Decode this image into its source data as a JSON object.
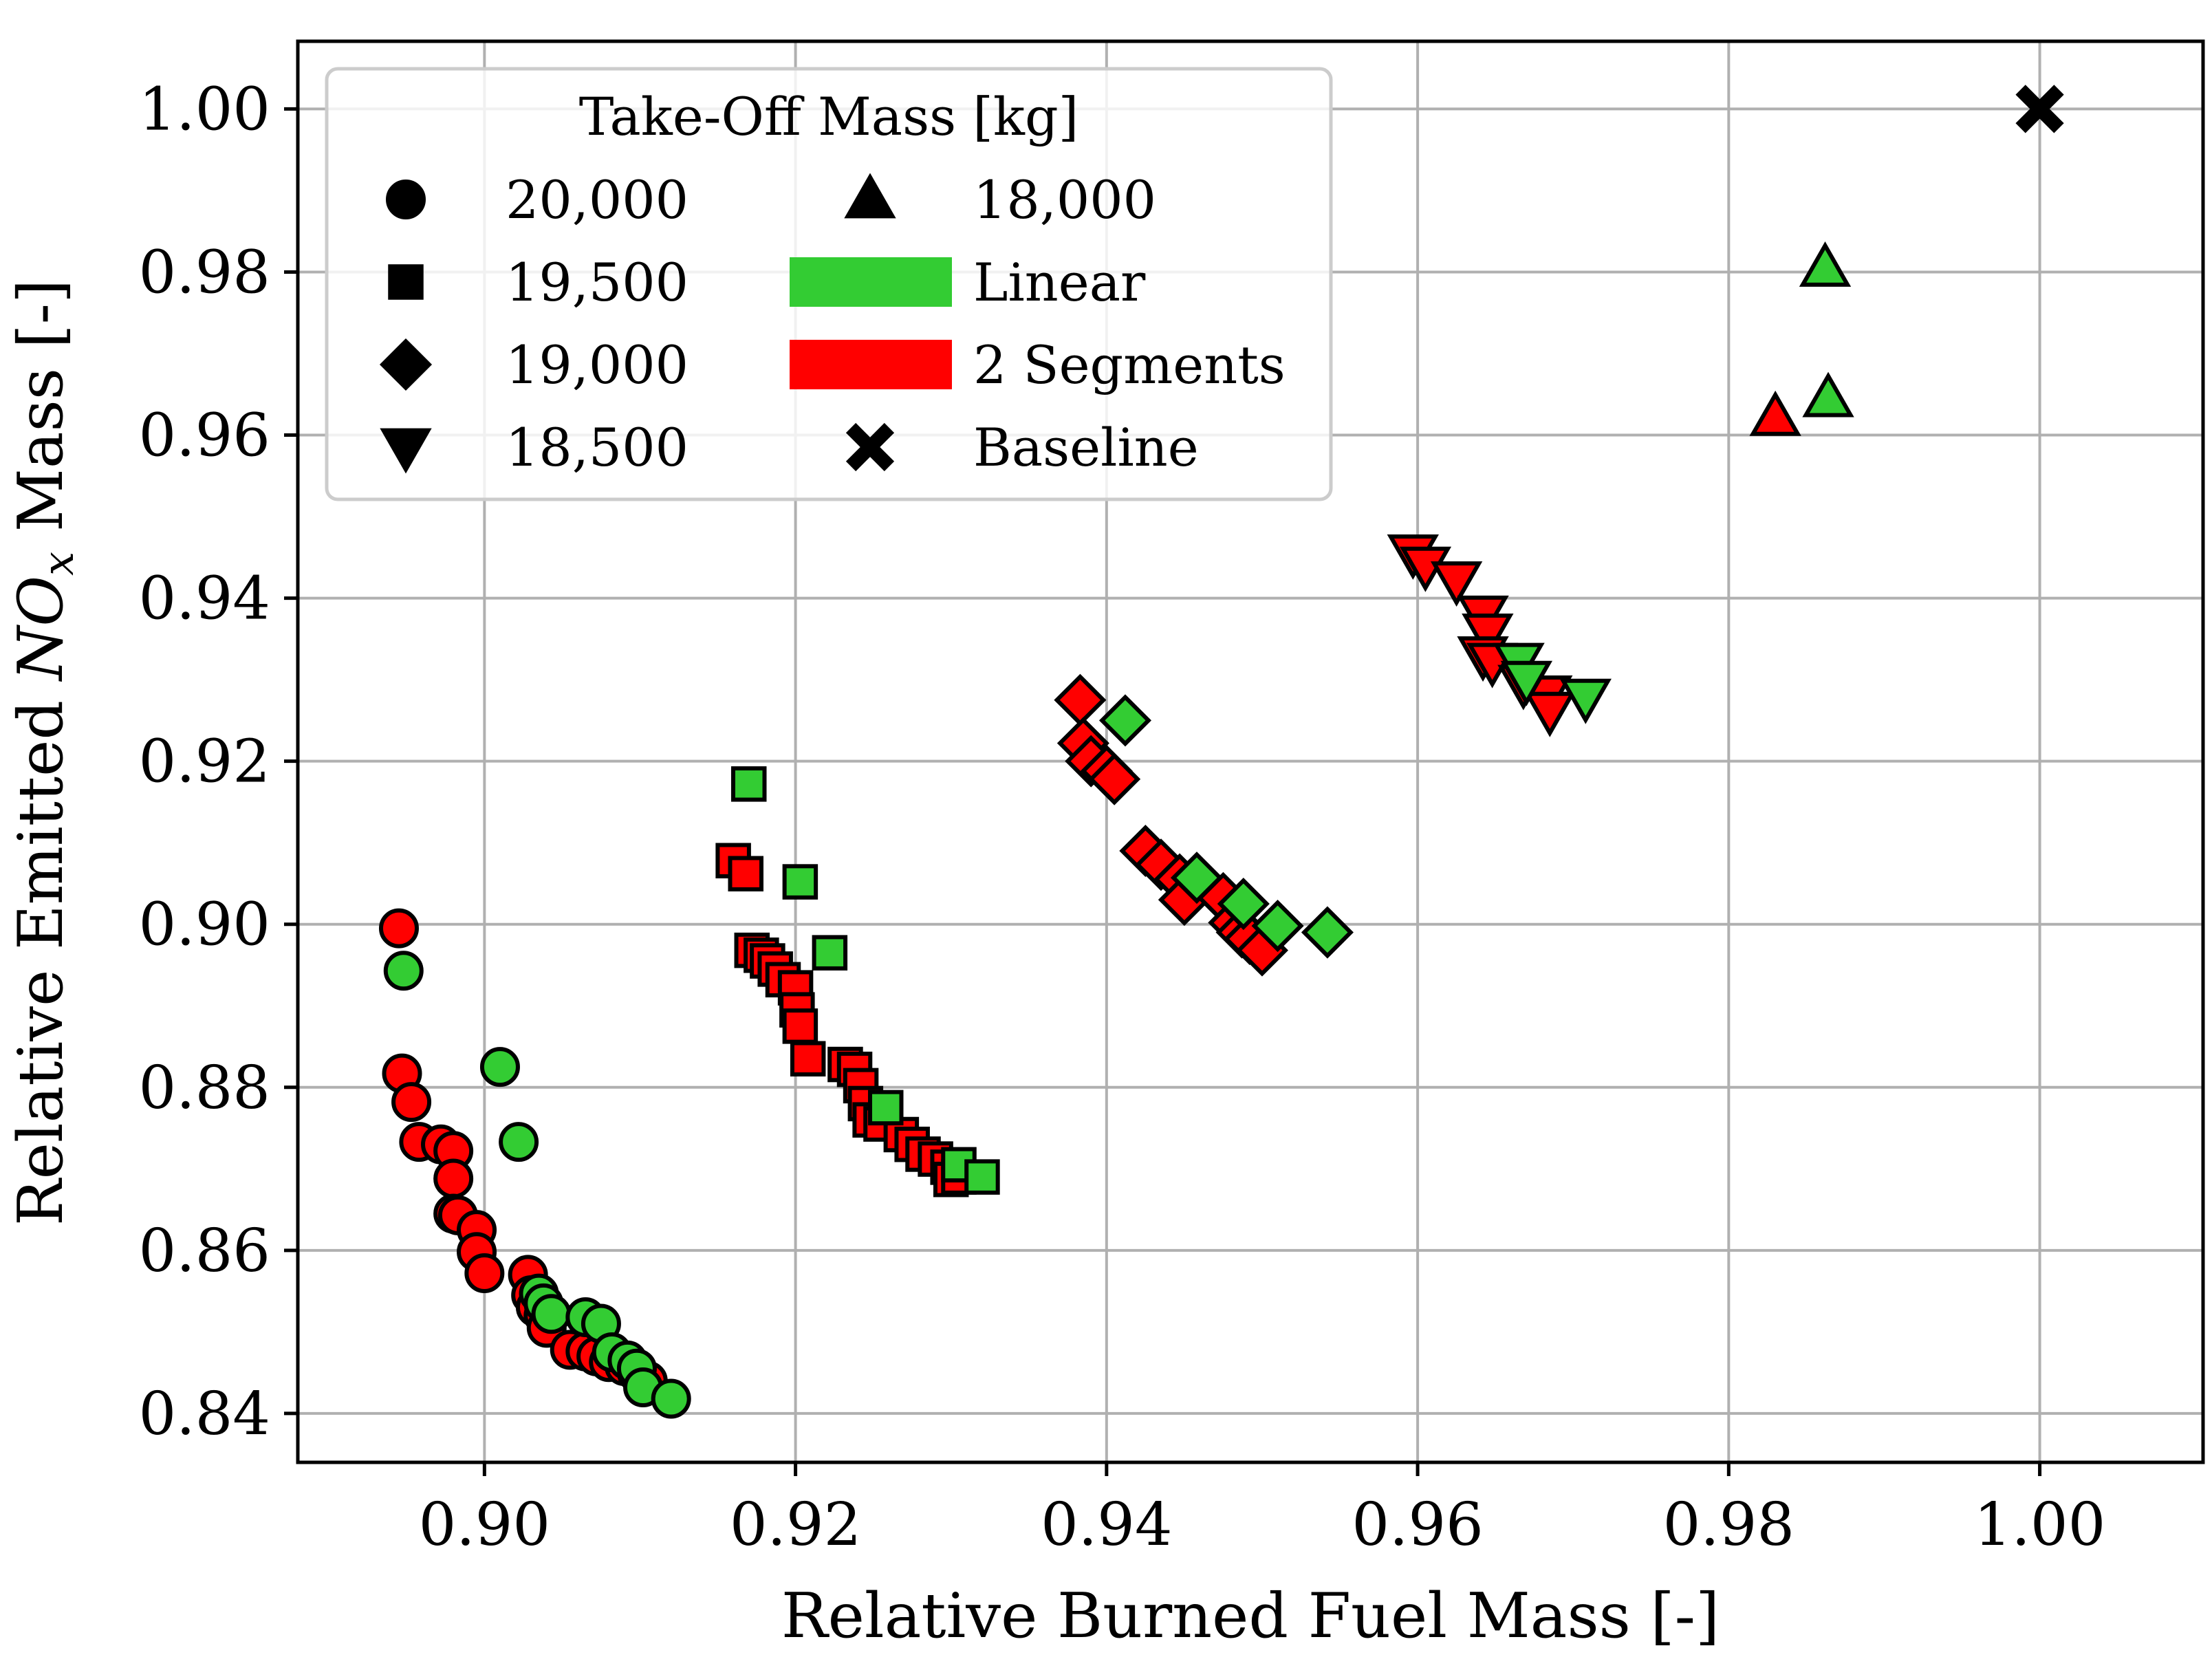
{
  "chart_data": {
    "type": "scatter",
    "xlabel": "Relative Burned Fuel Mass [-]",
    "ylabel_parts": {
      "pre": "Relative Emitted ",
      "math_main": "NO",
      "math_sub": "x",
      "post": " Mass [-]"
    },
    "xlim": [
      0.888,
      1.0105
    ],
    "ylim": [
      0.834,
      1.0083
    ],
    "grid": true,
    "x_ticks": [
      0.9,
      0.92,
      0.94,
      0.96,
      0.98,
      1.0
    ],
    "y_ticks": [
      0.84,
      0.86,
      0.88,
      0.9,
      0.92,
      0.94,
      0.96,
      0.98,
      1.0
    ],
    "x_tick_labels": [
      "0.90",
      "0.92",
      "0.94",
      "0.96",
      "0.98",
      "1.00"
    ],
    "y_tick_labels": [
      "0.84",
      "0.86",
      "0.88",
      "0.90",
      "0.92",
      "0.94",
      "0.96",
      "0.98",
      "1.00"
    ],
    "colors": {
      "linear": "#33cc33",
      "two_segments": "#ff0000",
      "baseline": "#000000",
      "grid": "#b0b0b0",
      "edge": "#000000"
    },
    "legend": {
      "title": "Take-Off Mass [kg]",
      "placement": "top-left",
      "entries": [
        {
          "label": "20,000",
          "kind": "marker",
          "shape": "circle"
        },
        {
          "label": "19,500",
          "kind": "marker",
          "shape": "square"
        },
        {
          "label": "19,000",
          "kind": "marker",
          "shape": "diamond"
        },
        {
          "label": "18,500",
          "kind": "marker",
          "shape": "triangle-down"
        },
        {
          "label": "18,000",
          "kind": "marker",
          "shape": "triangle-up"
        },
        {
          "label": "Linear",
          "kind": "patch",
          "color": "linear"
        },
        {
          "label": "2 Segments",
          "kind": "patch",
          "color": "two_segments"
        },
        {
          "label": "Baseline",
          "kind": "marker",
          "shape": "x-cross"
        }
      ]
    },
    "series": [
      {
        "name": "20,000 kg - 2 Segments",
        "shape": "circle",
        "color": "two_segments",
        "points": [
          [
            0.8945,
            0.8995
          ],
          [
            0.8947,
            0.8817
          ],
          [
            0.8953,
            0.8782
          ],
          [
            0.8958,
            0.8733
          ],
          [
            0.8972,
            0.873
          ],
          [
            0.898,
            0.8722
          ],
          [
            0.898,
            0.8688
          ],
          [
            0.898,
            0.8645
          ],
          [
            0.8983,
            0.8643
          ],
          [
            0.8995,
            0.8625
          ],
          [
            0.8995,
            0.8598
          ],
          [
            0.9,
            0.8572
          ],
          [
            0.9028,
            0.857
          ],
          [
            0.903,
            0.8545
          ],
          [
            0.9033,
            0.853
          ],
          [
            0.9038,
            0.852
          ],
          [
            0.904,
            0.8505
          ],
          [
            0.9055,
            0.8478
          ],
          [
            0.9065,
            0.8476
          ],
          [
            0.9072,
            0.847
          ],
          [
            0.908,
            0.8463
          ],
          [
            0.909,
            0.8458
          ],
          [
            0.9098,
            0.845
          ],
          [
            0.9105,
            0.844
          ]
        ]
      },
      {
        "name": "20,000 kg - Linear",
        "shape": "circle",
        "color": "linear",
        "points": [
          [
            0.8948,
            0.8943
          ],
          [
            0.901,
            0.8825
          ],
          [
            0.9022,
            0.8733
          ],
          [
            0.9035,
            0.8547
          ],
          [
            0.9038,
            0.8535
          ],
          [
            0.9043,
            0.8522
          ],
          [
            0.9065,
            0.8518
          ],
          [
            0.9075,
            0.851
          ],
          [
            0.9082,
            0.8475
          ],
          [
            0.9092,
            0.8465
          ],
          [
            0.9098,
            0.8455
          ],
          [
            0.9102,
            0.8432
          ],
          [
            0.912,
            0.8418
          ]
        ]
      },
      {
        "name": "19,500 kg - 2 Segments",
        "shape": "square",
        "color": "two_segments",
        "points": [
          [
            0.916,
            0.9078
          ],
          [
            0.9168,
            0.9062
          ],
          [
            0.9172,
            0.8968
          ],
          [
            0.9178,
            0.8962
          ],
          [
            0.9182,
            0.8955
          ],
          [
            0.9187,
            0.8945
          ],
          [
            0.9192,
            0.8932
          ],
          [
            0.92,
            0.8922
          ],
          [
            0.9201,
            0.8895
          ],
          [
            0.9203,
            0.8875
          ],
          [
            0.9208,
            0.8835
          ],
          [
            0.9232,
            0.8828
          ],
          [
            0.9238,
            0.8822
          ],
          [
            0.9242,
            0.8802
          ],
          [
            0.9245,
            0.878
          ],
          [
            0.9248,
            0.876
          ],
          [
            0.9255,
            0.8755
          ],
          [
            0.9268,
            0.8742
          ],
          [
            0.9275,
            0.873
          ],
          [
            0.9282,
            0.8718
          ],
          [
            0.929,
            0.8712
          ],
          [
            0.9298,
            0.8702
          ],
          [
            0.93,
            0.8687
          ],
          [
            0.9305,
            0.869
          ]
        ]
      },
      {
        "name": "19,500 kg - Linear",
        "shape": "square",
        "color": "linear",
        "points": [
          [
            0.917,
            0.9172
          ],
          [
            0.9203,
            0.9052
          ],
          [
            0.9222,
            0.8965
          ],
          [
            0.9258,
            0.8775
          ],
          [
            0.9305,
            0.8705
          ],
          [
            0.932,
            0.869
          ]
        ]
      },
      {
        "name": "19,000 kg - 2 Segments",
        "shape": "diamond",
        "color": "two_segments",
        "points": [
          [
            0.9383,
            0.9275
          ],
          [
            0.9385,
            0.9222
          ],
          [
            0.939,
            0.92
          ],
          [
            0.94,
            0.9188
          ],
          [
            0.9405,
            0.9178
          ],
          [
            0.9425,
            0.909
          ],
          [
            0.9435,
            0.9073
          ],
          [
            0.9447,
            0.9055
          ],
          [
            0.945,
            0.903
          ],
          [
            0.9475,
            0.9032
          ],
          [
            0.9482,
            0.9002
          ],
          [
            0.9487,
            0.899
          ],
          [
            0.9492,
            0.8982
          ],
          [
            0.95,
            0.8968
          ]
        ]
      },
      {
        "name": "19,000 kg - Linear",
        "shape": "diamond",
        "color": "linear",
        "points": [
          [
            0.9412,
            0.925
          ],
          [
            0.9458,
            0.9057
          ],
          [
            0.9488,
            0.9025
          ],
          [
            0.951,
            0.8998
          ],
          [
            0.9542,
            0.899
          ]
        ]
      },
      {
        "name": "18,500 kg - 2 Segments",
        "shape": "triangle-down",
        "color": "two_segments",
        "points": [
          [
            0.9597,
            0.9455
          ],
          [
            0.9605,
            0.944
          ],
          [
            0.9625,
            0.9422
          ],
          [
            0.9642,
            0.938
          ],
          [
            0.9645,
            0.9358
          ],
          [
            0.9642,
            0.933
          ],
          [
            0.9648,
            0.9322
          ],
          [
            0.9668,
            0.9295
          ],
          [
            0.9683,
            0.9282
          ],
          [
            0.9685,
            0.9262
          ]
        ]
      },
      {
        "name": "18,500 kg - Linear",
        "shape": "triangle-down",
        "color": "linear",
        "points": [
          [
            0.9665,
            0.9322
          ],
          [
            0.967,
            0.93
          ],
          [
            0.9708,
            0.9278
          ]
        ]
      },
      {
        "name": "18,000 kg - 2 Segments",
        "shape": "triangle-up",
        "color": "two_segments",
        "points": [
          [
            0.983,
            0.9622
          ]
        ]
      },
      {
        "name": "18,000 kg - Linear",
        "shape": "triangle-up",
        "color": "linear",
        "points": [
          [
            0.9862,
            0.9805
          ],
          [
            0.9864,
            0.9645
          ]
        ]
      },
      {
        "name": "Baseline",
        "shape": "x-cross",
        "color": "baseline",
        "points": [
          [
            1.0,
            1.0
          ]
        ]
      }
    ]
  }
}
